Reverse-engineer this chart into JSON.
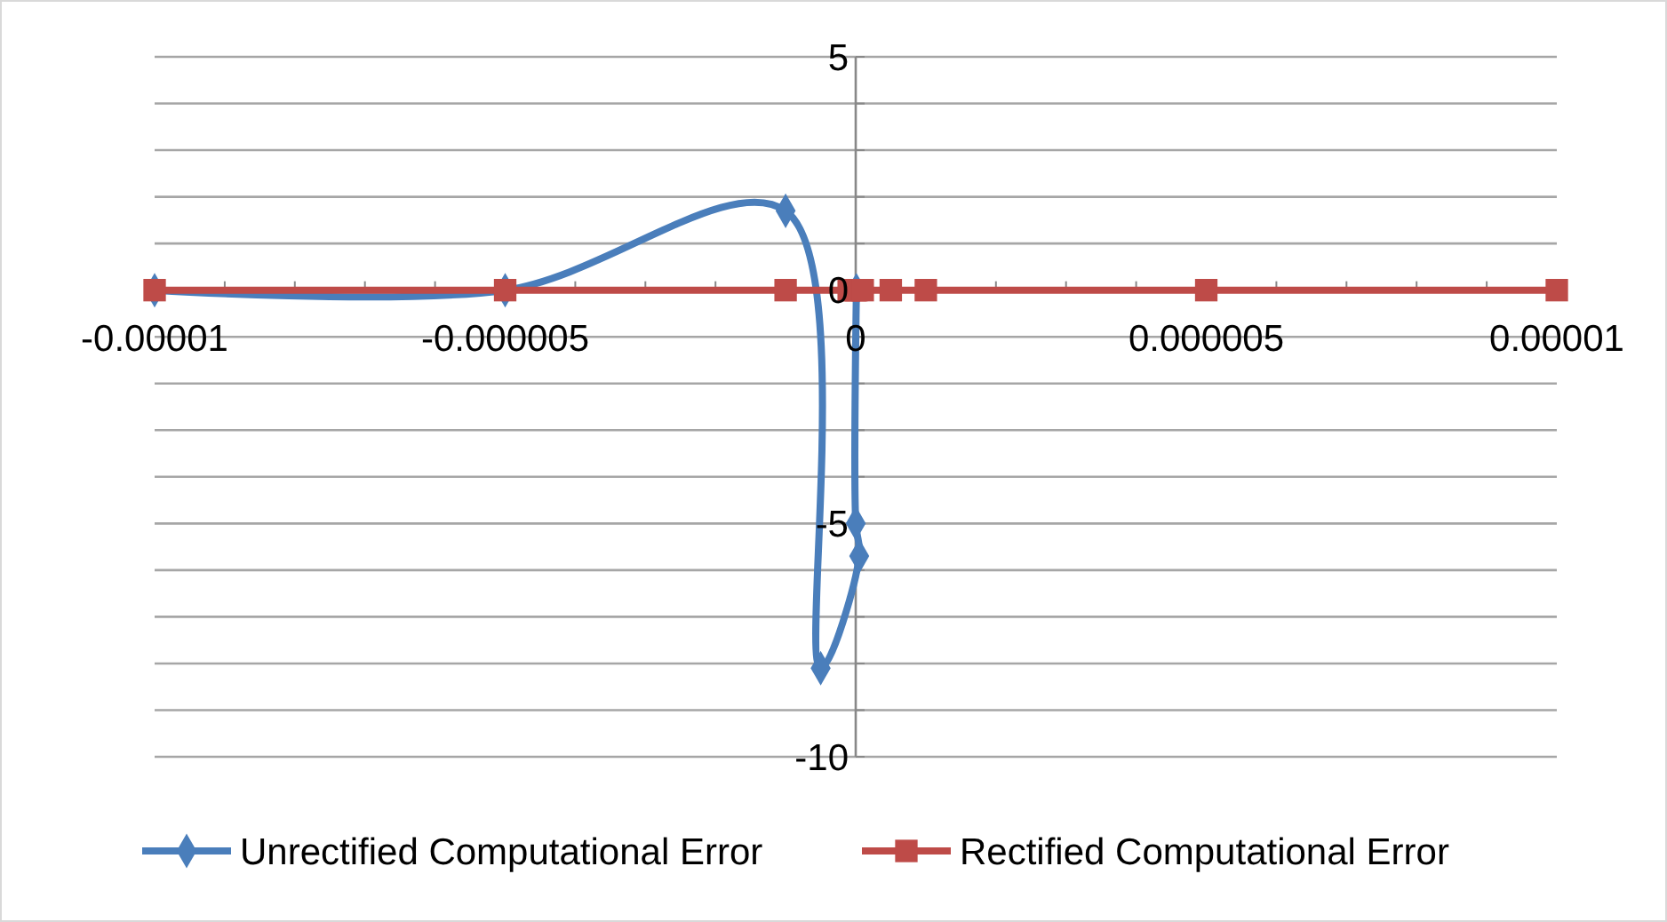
{
  "chart_data": {
    "type": "line",
    "series": [
      {
        "name": "Unrectified Computational Error",
        "color": "#4a7ebb",
        "marker": "diamond",
        "x": [
          -1e-05,
          -5e-06,
          -1e-06,
          -5e-07,
          5e-08,
          1e-09,
          1e-08
        ],
        "values": [
          0,
          0,
          1.7,
          -8.1,
          -5.7,
          -5,
          0
        ]
      },
      {
        "name": "Rectified Computational Error",
        "color": "#be4b48",
        "marker": "square",
        "x": [
          -1e-05,
          -5e-06,
          -1e-06,
          -1e-07,
          -1e-08,
          1e-08,
          1e-07,
          5e-07,
          1e-06,
          5e-06,
          1e-05
        ],
        "values": [
          0,
          0,
          0,
          0,
          0,
          0,
          0,
          0,
          0,
          0,
          0
        ]
      }
    ],
    "xlim": [
      -1e-05,
      1e-05
    ],
    "ylim": [
      -10,
      5
    ],
    "xticks": [
      {
        "value": -1e-05,
        "label": "-0.00001"
      },
      {
        "value": -9e-06,
        "label": null
      },
      {
        "value": -8e-06,
        "label": null
      },
      {
        "value": -7e-06,
        "label": null
      },
      {
        "value": -6e-06,
        "label": null
      },
      {
        "value": -5e-06,
        "label": "-0.000005"
      },
      {
        "value": -4e-06,
        "label": null
      },
      {
        "value": -3e-06,
        "label": null
      },
      {
        "value": -2e-06,
        "label": null
      },
      {
        "value": -1e-06,
        "label": null
      },
      0,
      {
        "value": 1e-06,
        "label": null
      },
      {
        "value": 2e-06,
        "label": null
      },
      {
        "value": 3e-06,
        "label": null
      },
      {
        "value": 4e-06,
        "label": null
      },
      {
        "value": 5e-06,
        "label": "0.000005"
      },
      {
        "value": 6e-06,
        "label": null
      },
      {
        "value": 7e-06,
        "label": null
      },
      {
        "value": 8e-06,
        "label": null
      },
      {
        "value": 9e-06,
        "label": null
      },
      {
        "value": 1e-05,
        "label": "0.00001"
      }
    ],
    "yticks": [
      -10,
      {
        "value": -9,
        "label": null
      },
      {
        "value": -8,
        "label": null
      },
      {
        "value": -7,
        "label": null
      },
      {
        "value": -6,
        "label": null
      },
      -5,
      {
        "value": -4,
        "label": null
      },
      {
        "value": -3,
        "label": null
      },
      {
        "value": -2,
        "label": null
      },
      {
        "value": -1,
        "label": null
      },
      0,
      {
        "value": 1,
        "label": null
      },
      {
        "value": 2,
        "label": null
      },
      {
        "value": 3,
        "label": null
      },
      {
        "value": 4,
        "label": null
      },
      5
    ],
    "grid": "y",
    "legend": "bottom",
    "line_style": "solid"
  }
}
